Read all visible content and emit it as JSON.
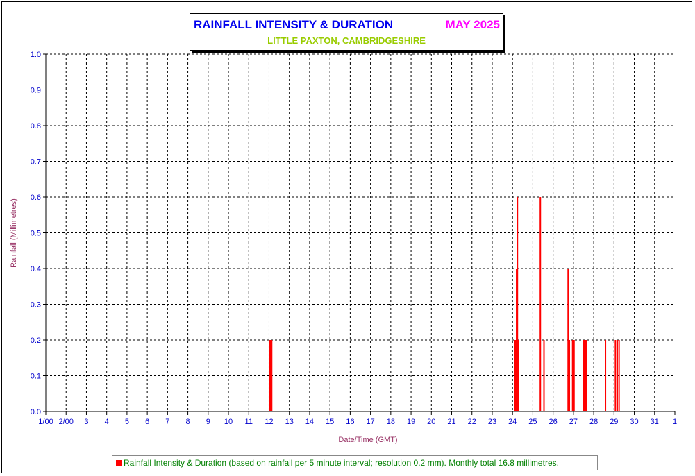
{
  "header": {
    "title": "RAINFALL INTENSITY & DURATION",
    "month": "MAY 2025",
    "subtitle": "LITTLE PAXTON, CAMBRIDGESHIRE"
  },
  "legend": {
    "text": "Rainfall Intensity & Duration (based on rainfall per 5 minute interval; resolution 0.2 mm). Monthly total 16.8 millimetres."
  },
  "colors": {
    "bar": "#ff0000",
    "axis_text": "#0000cc",
    "axis_title": "#993366",
    "title": "#0000ee",
    "month": "#ff00ff",
    "subtitle": "#99cc00",
    "legend_text": "#008000"
  },
  "chart_data": {
    "type": "bar",
    "title": "RAINFALL INTENSITY & DURATION",
    "xlabel": "Date/Time (GMT)",
    "ylabel": "Rainfall (Millimetres)",
    "xlim": [
      1,
      32
    ],
    "ylim": [
      0,
      1.0
    ],
    "grid": true,
    "x_tick_labels": [
      "1/00",
      "2/00",
      "3",
      "4",
      "5",
      "6",
      "7",
      "8",
      "9",
      "10",
      "11",
      "12",
      "13",
      "14",
      "15",
      "16",
      "17",
      "18",
      "19",
      "20",
      "21",
      "22",
      "23",
      "24",
      "25",
      "26",
      "27",
      "28",
      "29",
      "30",
      "31",
      "1"
    ],
    "y_tick_labels": [
      "0.0",
      "0.1",
      "0.2",
      "0.3",
      "0.4",
      "0.5",
      "0.6",
      "0.7",
      "0.8",
      "0.9",
      "1.0"
    ],
    "series": [
      {
        "name": "Rainfall Intensity & Duration",
        "points": [
          {
            "x": 12.05,
            "y": 0.2
          },
          {
            "x": 12.09,
            "y": 0.2
          },
          {
            "x": 12.13,
            "y": 0.2
          },
          {
            "x": 24.11,
            "y": 0.2
          },
          {
            "x": 24.15,
            "y": 0.2
          },
          {
            "x": 24.2,
            "y": 0.4
          },
          {
            "x": 24.24,
            "y": 0.6
          },
          {
            "x": 24.3,
            "y": 0.2
          },
          {
            "x": 25.37,
            "y": 0.6
          },
          {
            "x": 25.55,
            "y": 0.2
          },
          {
            "x": 26.74,
            "y": 0.4
          },
          {
            "x": 26.8,
            "y": 0.2
          },
          {
            "x": 26.96,
            "y": 0.2
          },
          {
            "x": 27.03,
            "y": 0.2
          },
          {
            "x": 27.49,
            "y": 0.2
          },
          {
            "x": 27.53,
            "y": 0.2
          },
          {
            "x": 27.57,
            "y": 0.2
          },
          {
            "x": 27.61,
            "y": 0.2
          },
          {
            "x": 27.65,
            "y": 0.2
          },
          {
            "x": 28.58,
            "y": 0.2
          },
          {
            "x": 29.07,
            "y": 0.2
          },
          {
            "x": 29.16,
            "y": 0.2
          },
          {
            "x": 29.25,
            "y": 0.2
          }
        ]
      }
    ]
  }
}
